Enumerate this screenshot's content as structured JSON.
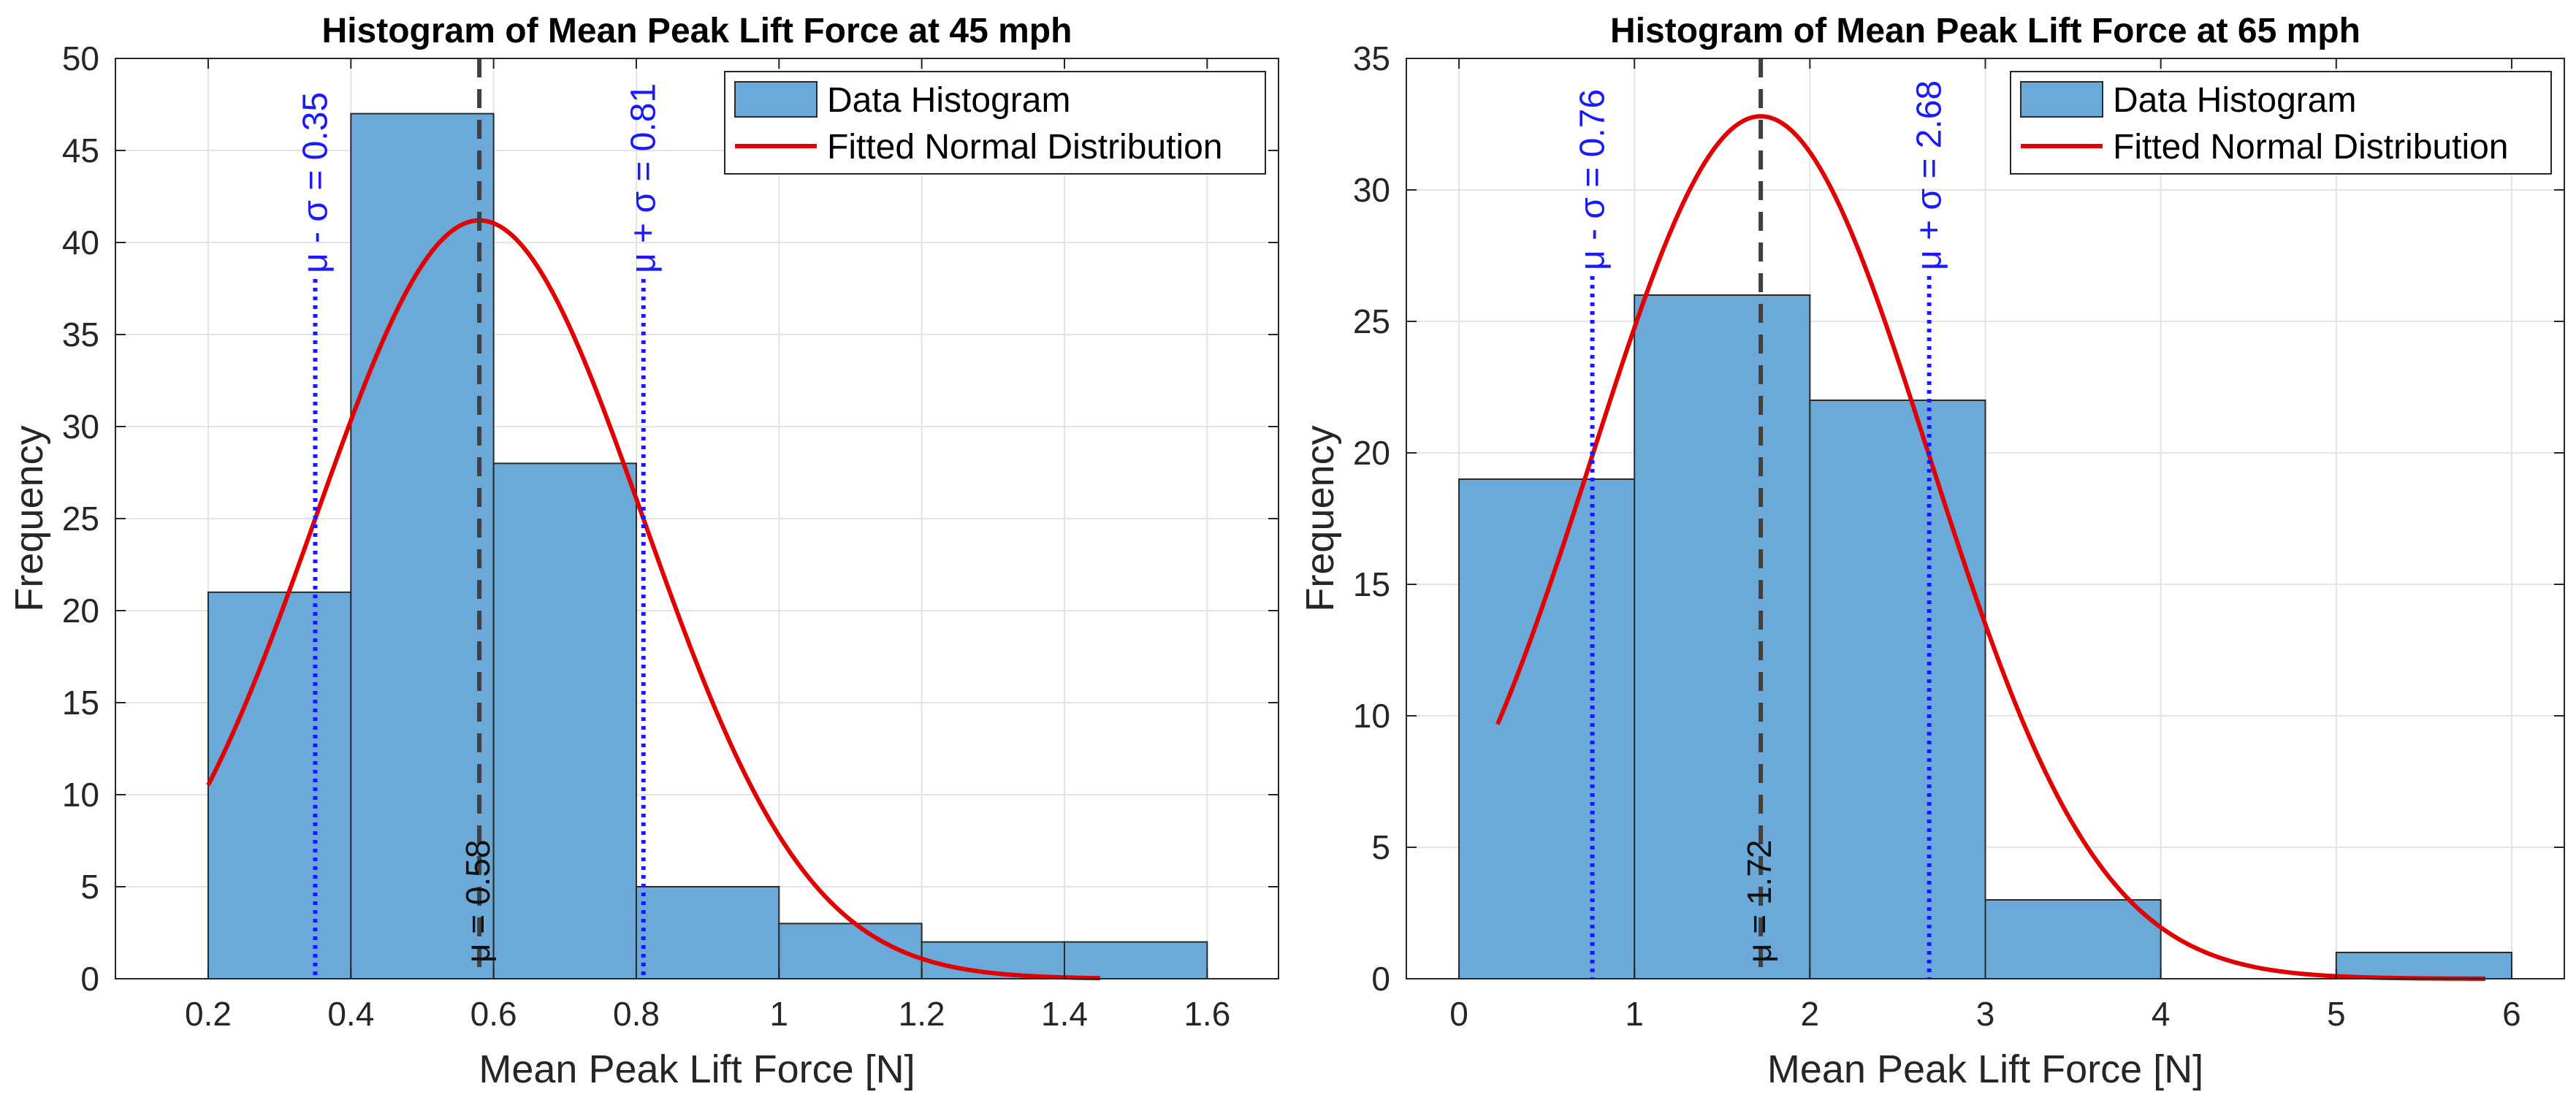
{
  "chart_data": [
    {
      "type": "bar",
      "title": "Histogram of Mean Peak Lift Force at 45 mph",
      "xlabel": "Mean Peak Lift Force [N]",
      "ylabel": "Frequency",
      "xlim": [
        0.07,
        1.7
      ],
      "ylim": [
        0,
        50
      ],
      "xticks": [
        0.2,
        0.4,
        0.6,
        0.8,
        1,
        1.2,
        1.4,
        1.6
      ],
      "xtick_labels": [
        "0.2",
        "0.4",
        "0.6",
        "0.8",
        "1",
        "1.2",
        "1.4",
        "1.6"
      ],
      "yticks": [
        0,
        5,
        10,
        15,
        20,
        25,
        30,
        35,
        40,
        45,
        50
      ],
      "ytick_labels": [
        "0",
        "5",
        "10",
        "15",
        "20",
        "25",
        "30",
        "35",
        "40",
        "45",
        "50"
      ],
      "grid": true,
      "bin_edges": [
        0.2,
        0.4,
        0.6,
        0.8,
        1.0,
        1.2,
        1.4,
        1.6
      ],
      "counts": [
        21,
        47,
        28,
        5,
        3,
        2,
        2
      ],
      "fit": {
        "mu": 0.58,
        "sigma": 0.23,
        "peak": 41.2,
        "x_start": 0.2,
        "x_end": 1.45
      },
      "mean_line": {
        "x": 0.58,
        "label": "μ = 0.58"
      },
      "sigma_lines": [
        {
          "x": 0.35,
          "label": "μ - σ = 0.35"
        },
        {
          "x": 0.81,
          "label": "μ + σ = 0.81"
        }
      ],
      "legend": {
        "position": "top-right",
        "entries": [
          {
            "label": "Data Histogram",
            "kind": "patch"
          },
          {
            "label": "Fitted Normal Distribution",
            "kind": "line"
          }
        ]
      }
    },
    {
      "type": "bar",
      "title": "Histogram of Mean Peak Lift Force at 65 mph",
      "xlabel": "Mean Peak Lift Force [N]",
      "ylabel": "Frequency",
      "xlim": [
        -0.3,
        6.3
      ],
      "ylim": [
        0,
        35
      ],
      "xticks": [
        0,
        1,
        2,
        3,
        4,
        5,
        6
      ],
      "xtick_labels": [
        "0",
        "1",
        "2",
        "3",
        "4",
        "5",
        "6"
      ],
      "yticks": [
        0,
        5,
        10,
        15,
        20,
        25,
        30,
        35
      ],
      "ytick_labels": [
        "0",
        "5",
        "10",
        "15",
        "20",
        "25",
        "30",
        "35"
      ],
      "grid": true,
      "bin_edges": [
        0,
        1,
        2,
        3,
        4,
        5,
        6
      ],
      "counts": [
        19,
        26,
        22,
        3,
        0,
        1
      ],
      "fit": {
        "mu": 1.72,
        "sigma": 0.96,
        "peak": 32.8,
        "x_start": 0.22,
        "x_end": 5.85
      },
      "mean_line": {
        "x": 1.72,
        "label": "μ = 1.72"
      },
      "sigma_lines": [
        {
          "x": 0.76,
          "label": "μ - σ = 0.76"
        },
        {
          "x": 2.68,
          "label": "μ + σ = 2.68"
        }
      ],
      "legend": {
        "position": "top-right",
        "entries": [
          {
            "label": "Data Histogram",
            "kind": "patch"
          },
          {
            "label": "Fitted Normal Distribution",
            "kind": "line"
          }
        ]
      }
    }
  ],
  "colors": {
    "bar_fill": "#6aa9d8",
    "bar_edge": "#2b2b2b",
    "fit_line": "#e00000",
    "mean_line": "#404040",
    "sigma_line": "#1a1aff",
    "grid": "#e3e3e3",
    "axis": "#262626",
    "text": "#262626",
    "title": "#000000"
  }
}
